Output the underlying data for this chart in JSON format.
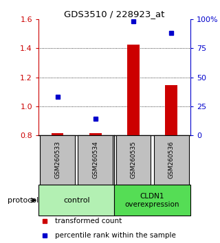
{
  "title": "GDS3510 / 228923_at",
  "samples": [
    "GSM260533",
    "GSM260534",
    "GSM260535",
    "GSM260536"
  ],
  "groups": [
    {
      "label": "control",
      "color": "#b3f0b3"
    },
    {
      "label": "CLDN1\noverexpression",
      "color": "#55dd55"
    }
  ],
  "bar_values": [
    0.815,
    0.813,
    1.425,
    1.145
  ],
  "point_values": [
    1.065,
    0.915,
    1.585,
    1.505
  ],
  "ylim": [
    0.8,
    1.6
  ],
  "y_ticks_left": [
    0.8,
    1.0,
    1.2,
    1.4,
    1.6
  ],
  "y_ticks_right_labels": [
    "0",
    "25",
    "50",
    "75",
    "100%"
  ],
  "bar_color": "#cc0000",
  "point_color": "#0000cc",
  "bar_base": 0.8,
  "sample_box_color": "#c0c0c0",
  "protocol_label": "protocol",
  "legend_bar_label": "transformed count",
  "legend_point_label": "percentile rank within the sample"
}
